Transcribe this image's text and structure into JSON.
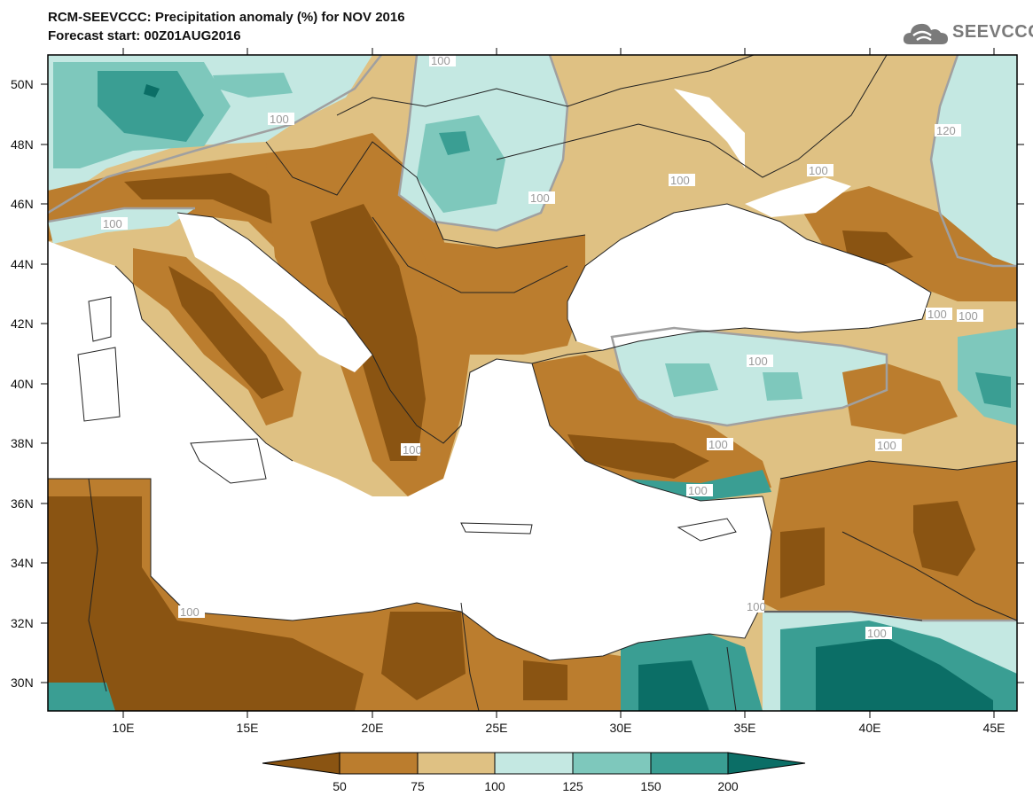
{
  "header": {
    "title": "RCM-SEEVCCC: Precipitation anomaly (%) for NOV 2016",
    "subtitle": "Forecast start: 00Z01AUG2016",
    "logo_text": "SEEVCCC"
  },
  "map": {
    "lat_labels": [
      "50N",
      "48N",
      "46N",
      "44N",
      "42N",
      "40N",
      "38N",
      "36N",
      "34N",
      "32N",
      "30N"
    ],
    "lon_labels": [
      "10E",
      "15E",
      "20E",
      "25E",
      "30E",
      "35E",
      "40E",
      "45E"
    ],
    "contour_labels": [
      "100",
      "100",
      "100",
      "100",
      "100",
      "100",
      "100",
      "100",
      "100",
      "100",
      "100",
      "100",
      "100",
      "100",
      "120",
      "100",
      "100"
    ]
  },
  "legend": {
    "tick_labels": [
      "50",
      "75",
      "100",
      "125",
      "150",
      "200"
    ],
    "colors": [
      "#8a5412",
      "#bb7d2e",
      "#dfc183",
      "#c4e8e2",
      "#7ec8bc",
      "#3a9e93",
      "#0b6e66"
    ]
  },
  "colors": {
    "sea": "#ffffff",
    "border": "#222222",
    "contour": "#a0a0a0"
  }
}
